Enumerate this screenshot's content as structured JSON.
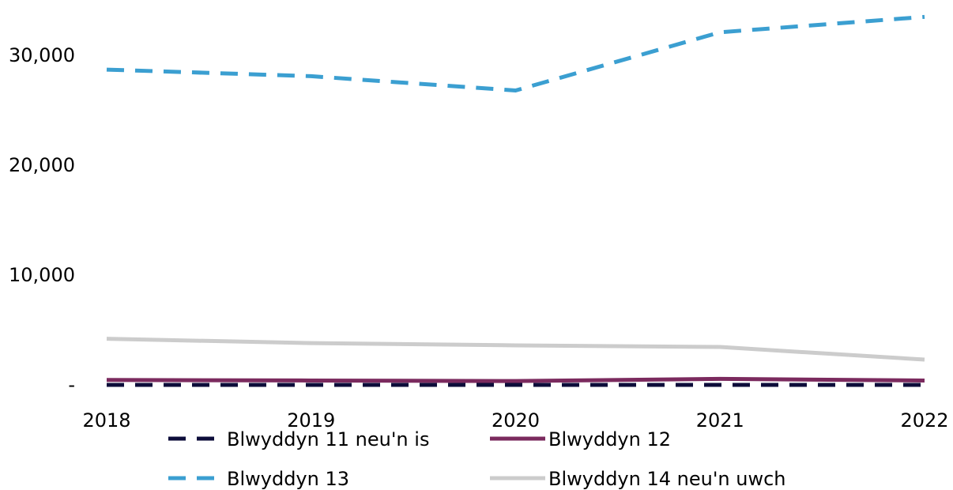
{
  "chart_data": {
    "type": "line",
    "title": "",
    "xlabel": "",
    "ylabel": "",
    "x": [
      "2018",
      "2019",
      "2020",
      "2021",
      "2022"
    ],
    "ylim": [
      0,
      33000
    ],
    "yticks": [
      0,
      10000,
      20000,
      30000
    ],
    "ytick_labels": [
      "-",
      "10,000",
      "20,000",
      "30,000"
    ],
    "grid": false,
    "legend_position": "bottom",
    "series": [
      {
        "name": "Blwyddyn 11 neu'n is",
        "values": [
          0,
          0,
          0,
          0,
          0
        ],
        "color": "#0d0d3a",
        "style": "dashed"
      },
      {
        "name": "Blwyddyn 12",
        "values": [
          450,
          400,
          350,
          550,
          400
        ],
        "color": "#7b2a5e",
        "style": "solid"
      },
      {
        "name": "Blwyddyn 13",
        "values": [
          28700,
          28100,
          26800,
          32100,
          33500
        ],
        "color": "#3b9fd1",
        "style": "dashed"
      },
      {
        "name": "Blwyddyn 14 neu'n uwch",
        "values": [
          4200,
          3800,
          3600,
          3450,
          2300
        ],
        "color": "#cccccc",
        "style": "solid"
      }
    ]
  }
}
